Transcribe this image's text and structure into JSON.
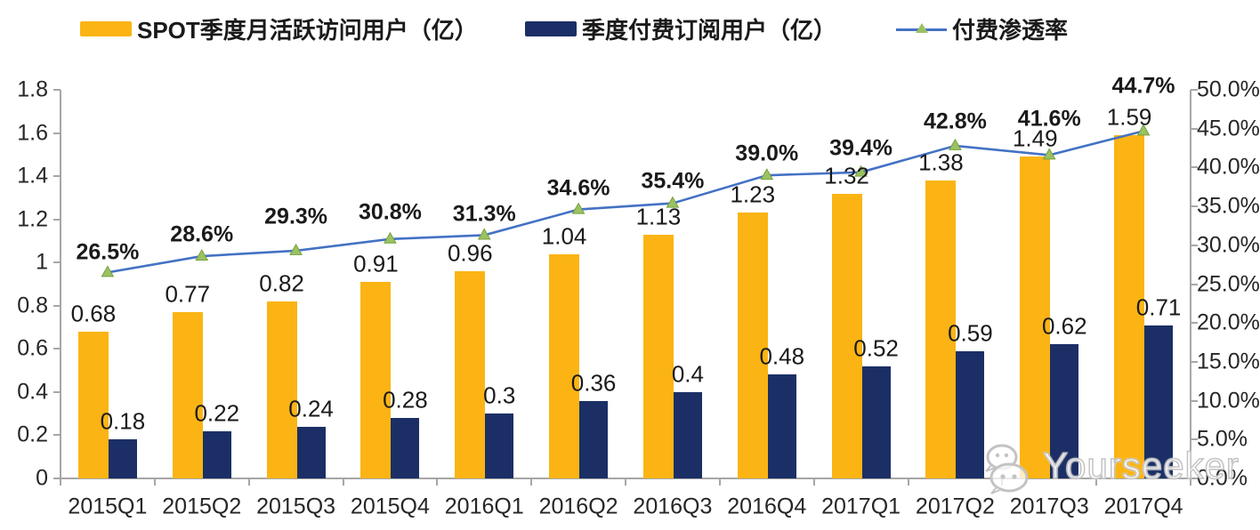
{
  "legend": {
    "items": [
      {
        "label": "SPOT季度月活跃访问用户（亿）",
        "swatch": "bar",
        "color": "#FBB414"
      },
      {
        "label": "季度付费订阅用户（亿）",
        "swatch": "bar",
        "color": "#1B2F66"
      },
      {
        "label": "付费渗透率",
        "swatch": "line-triangle-marker",
        "color": "#4472C4",
        "marker_color": "#9CC162"
      }
    ]
  },
  "chart_data": {
    "type": "bar",
    "subtype": "grouped-bars-with-line-overlay",
    "categories": [
      "2015Q1",
      "2015Q2",
      "2015Q3",
      "2015Q4",
      "2016Q1",
      "2016Q2",
      "2016Q3",
      "2016Q4",
      "2017Q1",
      "2017Q2",
      "2017Q3",
      "2017Q4"
    ],
    "series": [
      {
        "name": "SPOT季度月活跃访问用户（亿）",
        "type": "bar",
        "axis": "left",
        "color": "#FBB414",
        "values": [
          0.68,
          0.77,
          0.82,
          0.91,
          0.96,
          1.04,
          1.13,
          1.23,
          1.32,
          1.38,
          1.49,
          1.59
        ],
        "labels": [
          "0.68",
          "0.77",
          "0.82",
          "0.91",
          "0.96",
          "1.04",
          "1.13",
          "1.23",
          "1.32",
          "1.38",
          "1.49",
          "1.59"
        ]
      },
      {
        "name": "季度付费订阅用户（亿）",
        "type": "bar",
        "axis": "left",
        "color": "#1B2F66",
        "values": [
          0.18,
          0.22,
          0.24,
          0.28,
          0.3,
          0.36,
          0.4,
          0.48,
          0.52,
          0.59,
          0.62,
          0.71
        ],
        "labels": [
          "0.18",
          "0.22",
          "0.24",
          "0.28",
          "0.3",
          "0.36",
          "0.4",
          "0.48",
          "0.52",
          "0.59",
          "0.62",
          "0.71"
        ]
      },
      {
        "name": "付费渗透率",
        "type": "line",
        "axis": "right",
        "color": "#4472C4",
        "marker": "triangle",
        "marker_color": "#9CC162",
        "marker_edge_color": "#74A23E",
        "values": [
          26.5,
          28.6,
          29.3,
          30.8,
          31.3,
          34.6,
          35.4,
          39.0,
          39.4,
          42.8,
          41.6,
          44.7
        ],
        "labels": [
          "26.5%",
          "28.6%",
          "29.3%",
          "30.8%",
          "31.3%",
          "34.6%",
          "35.4%",
          "39.0%",
          "39.4%",
          "42.8%",
          "41.6%",
          "44.7%"
        ]
      }
    ],
    "left_axis": {
      "min": 0,
      "max": 1.8,
      "tick_labels_top_to_bottom": [
        "1.8",
        "1.6",
        "1.4",
        "1.2",
        "1",
        "0.8",
        "0.6",
        "0.4",
        "0.2",
        "0"
      ]
    },
    "right_axis": {
      "min": 0,
      "max": 50,
      "unit": "%",
      "tick_labels_top_to_bottom": [
        "50.0%",
        "45.0%",
        "40.0%",
        "35.0%",
        "30.0%",
        "25.0%",
        "20.0%",
        "15.0%",
        "10.0%",
        "5.0%",
        "0.0%"
      ]
    },
    "grid": false,
    "legend_position": "top",
    "axis_color": "#A6A6A6"
  },
  "watermark": {
    "text": "Yourseeker",
    "icon": "wechat-icon"
  }
}
